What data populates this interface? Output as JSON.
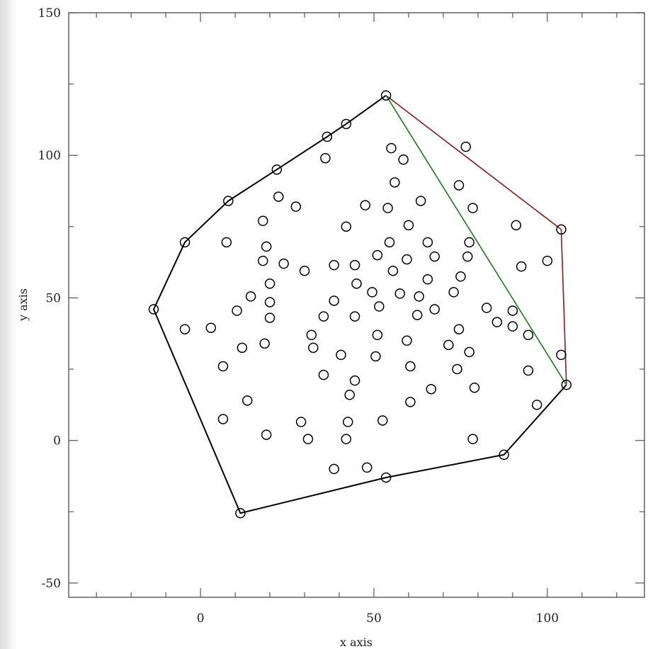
{
  "chart_data": {
    "type": "scatter",
    "title": "",
    "xlabel": "x axis",
    "ylabel": "y axis",
    "xlim": [
      -38,
      128
    ],
    "ylim": [
      -55,
      150
    ],
    "xticks": [
      0,
      50,
      100
    ],
    "yticks": [
      -50,
      0,
      50,
      100,
      150
    ],
    "xtick_labels": [
      "0",
      "50",
      "100"
    ],
    "ytick_labels": [
      "-50",
      "0",
      "50",
      "100",
      "150"
    ],
    "grid": false,
    "legend": "none",
    "series": [
      {
        "kind": "points",
        "marker": "open-circle",
        "color": "#000000",
        "points": [
          [
            53.5,
            121
          ],
          [
            42,
            111
          ],
          [
            36.5,
            106.5
          ],
          [
            36,
            99
          ],
          [
            22,
            95
          ],
          [
            8,
            84
          ],
          [
            -4.5,
            69.5
          ],
          [
            -13.5,
            46
          ],
          [
            11.5,
            -25.5
          ],
          [
            53.5,
            -13
          ],
          [
            87.5,
            -5
          ],
          [
            105.5,
            19.5
          ],
          [
            104,
            30
          ],
          [
            104,
            74
          ],
          [
            76.5,
            103
          ],
          [
            55,
            102.5
          ],
          [
            58.5,
            98.5
          ],
          [
            56,
            90.5
          ],
          [
            74.5,
            89.5
          ],
          [
            63.5,
            84
          ],
          [
            22.5,
            85.5
          ],
          [
            27.5,
            82
          ],
          [
            47.5,
            82.5
          ],
          [
            54,
            81.5
          ],
          [
            78.5,
            81.5
          ],
          [
            18,
            77
          ],
          [
            42,
            75
          ],
          [
            60,
            75.5
          ],
          [
            91,
            75.5
          ],
          [
            7.5,
            69.5
          ],
          [
            19,
            68
          ],
          [
            54.5,
            69.5
          ],
          [
            65.5,
            69.5
          ],
          [
            77.5,
            69.5
          ],
          [
            51,
            65
          ],
          [
            59.5,
            63.5
          ],
          [
            67.5,
            64.5
          ],
          [
            77,
            64.5
          ],
          [
            100,
            63
          ],
          [
            18,
            63
          ],
          [
            24,
            62
          ],
          [
            38.5,
            61.5
          ],
          [
            44.5,
            61.5
          ],
          [
            92.5,
            61
          ],
          [
            30,
            59.5
          ],
          [
            55.5,
            59.5
          ],
          [
            75,
            57.5
          ],
          [
            65.5,
            56.5
          ],
          [
            20,
            55
          ],
          [
            45,
            55
          ],
          [
            49.5,
            52
          ],
          [
            57.5,
            51.5
          ],
          [
            73,
            52
          ],
          [
            14.5,
            50.5
          ],
          [
            63,
            50.5
          ],
          [
            38.5,
            49
          ],
          [
            20,
            48.5
          ],
          [
            51.5,
            47
          ],
          [
            67.5,
            46
          ],
          [
            82.5,
            46.5
          ],
          [
            90,
            45.5
          ],
          [
            10.5,
            45.5
          ],
          [
            35.5,
            43.5
          ],
          [
            44.5,
            43.5
          ],
          [
            20,
            43
          ],
          [
            62.5,
            44
          ],
          [
            85.5,
            41.5
          ],
          [
            -4.5,
            39
          ],
          [
            3,
            39.5
          ],
          [
            74.5,
            39
          ],
          [
            90,
            40
          ],
          [
            94.5,
            37
          ],
          [
            32,
            37
          ],
          [
            51,
            37
          ],
          [
            18.5,
            34
          ],
          [
            59.5,
            35
          ],
          [
            71.5,
            33.5
          ],
          [
            12,
            32.5
          ],
          [
            32.5,
            32.5
          ],
          [
            40.5,
            30
          ],
          [
            50.5,
            29.5
          ],
          [
            77.5,
            31
          ],
          [
            6.5,
            26
          ],
          [
            60.5,
            26
          ],
          [
            74,
            25
          ],
          [
            94.5,
            24.5
          ],
          [
            35.5,
            23
          ],
          [
            44.5,
            21
          ],
          [
            66.5,
            18
          ],
          [
            79,
            18.5
          ],
          [
            43,
            16
          ],
          [
            13.5,
            14
          ],
          [
            60.5,
            13.5
          ],
          [
            97,
            12.5
          ],
          [
            6.5,
            7.5
          ],
          [
            29,
            6.5
          ],
          [
            42.5,
            6.5
          ],
          [
            52.5,
            7
          ],
          [
            19,
            2
          ],
          [
            31,
            0.5
          ],
          [
            42,
            0.5
          ],
          [
            78.5,
            0.5
          ],
          [
            38.5,
            -10
          ],
          [
            48,
            -9.5
          ]
        ]
      },
      {
        "kind": "polyline",
        "color": "#000000",
        "points": [
          [
            53.5,
            121
          ],
          [
            42,
            111
          ],
          [
            36.5,
            106.5
          ],
          [
            22,
            95
          ],
          [
            8,
            84
          ],
          [
            -4.5,
            69.5
          ],
          [
            -13.5,
            46
          ],
          [
            11.5,
            -25.5
          ],
          [
            53.5,
            -13
          ],
          [
            87.5,
            -5
          ],
          [
            105.5,
            19.5
          ]
        ]
      },
      {
        "kind": "polyline",
        "color": "#8b1a1a",
        "points": [
          [
            53.5,
            121
          ],
          [
            104,
            74
          ],
          [
            105.5,
            19.5
          ]
        ]
      },
      {
        "kind": "polyline",
        "color": "#1a7a1a",
        "points": [
          [
            53.5,
            121
          ],
          [
            105.5,
            19.5
          ]
        ]
      }
    ]
  }
}
